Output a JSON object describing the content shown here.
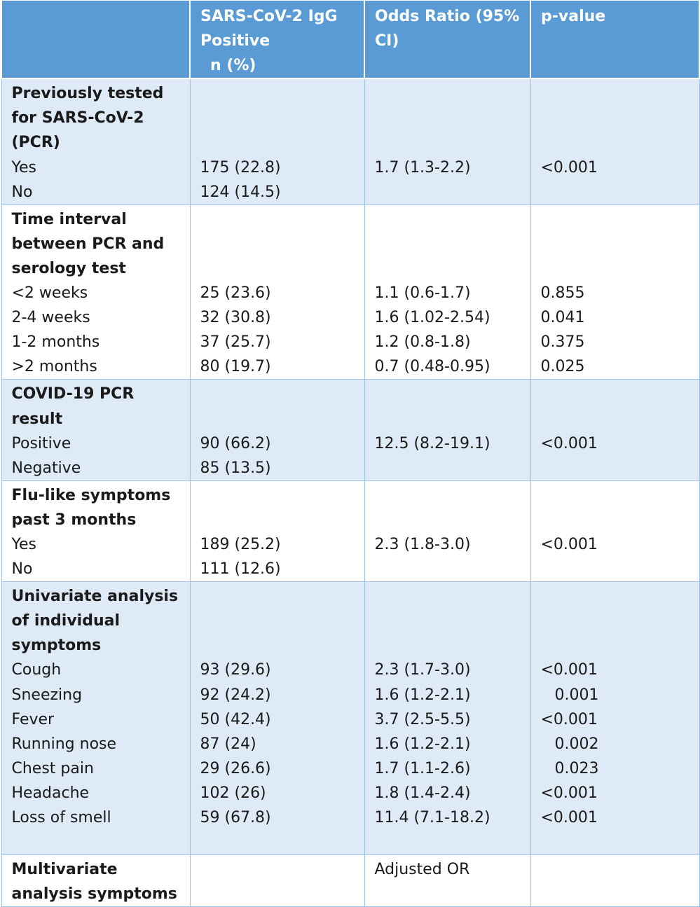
{
  "header": {
    "col1": "",
    "col2_lines": [
      "SARS-CoV-2  IgG",
      "Positive",
      "n (%)"
    ],
    "col3_lines": [
      "Odds Ratio (95%",
      "CI)"
    ],
    "col4": "p-value"
  },
  "groups": [
    {
      "title_lines": [
        "Previously tested",
        "for SARS-CoV-2",
        "(PCR)"
      ],
      "rows": [
        {
          "label": "Yes",
          "n": "175 (22.8)",
          "or": "1.7 (1.3-2.2)",
          "p": "<0.001",
          "p_indent": false
        },
        {
          "label": "No",
          "n": "124 (14.5)",
          "or": "",
          "p": "",
          "p_indent": false
        }
      ]
    },
    {
      "title_lines": [
        "Time interval",
        "between PCR and",
        "serology test"
      ],
      "rows": [
        {
          "label": "<2 weeks",
          "n": "25 (23.6)",
          "or": "1.1 (0.6-1.7)",
          "p": "0.855",
          "p_indent": false
        },
        {
          "label": "2-4 weeks",
          "n": "32 (30.8)",
          "or": "1.6 (1.02-2.54)",
          "p": "0.041",
          "p_indent": false
        },
        {
          "label": "1-2 months",
          "n": "37 (25.7)",
          "or": "1.2 (0.8-1.8)",
          "p": "0.375",
          "p_indent": false
        },
        {
          "label": ">2 months",
          "n": "80 (19.7)",
          "or": "0.7 (0.48-0.95)",
          "p": "0.025",
          "p_indent": false
        }
      ]
    },
    {
      "title_lines": [
        "COVID-19 PCR",
        "result"
      ],
      "rows": [
        {
          "label": "Positive",
          "n": "90 (66.2)",
          "or": "12.5 (8.2-19.1)",
          "p": "<0.001",
          "p_indent": false
        },
        {
          "label": "Negative",
          "n": "85 (13.5)",
          "or": "",
          "p": "",
          "p_indent": false
        }
      ]
    },
    {
      "title_lines": [
        "Flu-like symptoms",
        "past 3 months"
      ],
      "rows": [
        {
          "label": "Yes",
          "n": "189 (25.2)",
          "or": "2.3 (1.8-3.0)",
          "p": "<0.001",
          "p_indent": false
        },
        {
          "label": "No",
          "n": "111 (12.6)",
          "or": "",
          "p": "",
          "p_indent": false
        }
      ]
    },
    {
      "title_lines": [
        "Univariate analysis",
        "of individual",
        "symptoms"
      ],
      "trailing_blank": true,
      "rows": [
        {
          "label": "Cough",
          "n": "93 (29.6)",
          "or": "2.3 (1.7-3.0)",
          "p": "<0.001",
          "p_indent": false
        },
        {
          "label": "Sneezing",
          "n": "92 (24.2)",
          "or": "1.6 (1.2-2.1)",
          "p": "0.001",
          "p_indent": true
        },
        {
          "label": "Fever",
          "n": "50 (42.4)",
          "or": "3.7 (2.5-5.5)",
          "p": "<0.001",
          "p_indent": false
        },
        {
          "label": "Running nose",
          "n": "87 (24)",
          "or": "1.6 (1.2-2.1)",
          "p": "0.002",
          "p_indent": true
        },
        {
          "label": "Chest pain",
          "n": "29 (26.6)",
          "or": "1.7 (1.1-2.6)",
          "p": "0.023",
          "p_indent": true
        },
        {
          "label": "Headache",
          "n": "102 (26)",
          "or": "1.8 (1.4-2.4)",
          "p": "<0.001",
          "p_indent": false
        },
        {
          "label": "Loss of smell",
          "n": "59 (67.8)",
          "or": "11.4 (7.1-18.2)",
          "p": "<0.001",
          "p_indent": false
        }
      ]
    },
    {
      "title_lines": [
        "Multivariate",
        "analysis symptoms"
      ],
      "or_header": "Adjusted OR",
      "rows": []
    }
  ]
}
